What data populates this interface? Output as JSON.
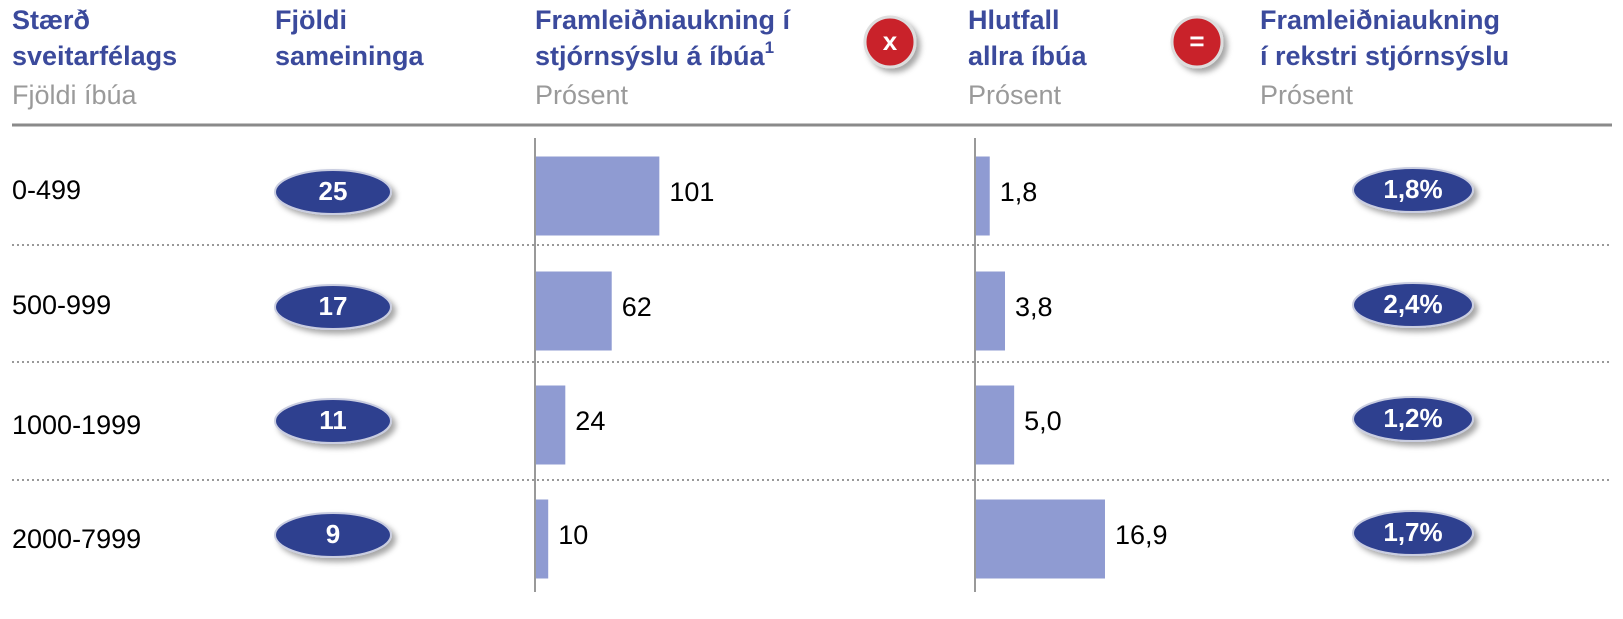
{
  "columns": [
    {
      "title": [
        "Stærð",
        "sveitarfélags"
      ],
      "unit": "Fjöldi íbúa"
    },
    {
      "title": [
        "Fjöldi",
        "sameininga"
      ]
    },
    {
      "title": [
        "Framleiðniaukning í",
        "stjórnsýslu á íbúa"
      ],
      "footnote": "1",
      "unit": "Prósent"
    },
    {
      "title": [
        "Hlutfall",
        "allra íbúa"
      ],
      "unit": "Prósent"
    },
    {
      "title": [
        "Framleiðniaukning",
        "í rekstri stjórnsýslu"
      ],
      "unit": "Prósent"
    }
  ],
  "operators": [
    "x",
    "="
  ],
  "categories": [
    "0-499",
    "500-999",
    "1000-1999",
    "2000-7999"
  ],
  "mergers": [
    25,
    17,
    11,
    9
  ],
  "chart_data": [
    {
      "type": "bar",
      "orientation": "horizontal",
      "values": [
        101,
        62,
        24,
        10
      ],
      "color": "#8f9bd2",
      "xlim": [
        0,
        330
      ]
    },
    {
      "type": "bar",
      "orientation": "horizontal",
      "values": [
        1.8,
        3.8,
        5.0,
        16.9
      ],
      "value_labels": [
        "1,8",
        "3,8",
        "5,0",
        "16,9"
      ],
      "color": "#8f9bd2",
      "xlim": [
        0,
        49
      ]
    }
  ],
  "result": {
    "values": [
      1.8,
      2.4,
      1.2,
      1.7
    ],
    "value_labels": [
      "1,8%",
      "2,4%",
      "1,2%",
      "1,7%"
    ]
  }
}
